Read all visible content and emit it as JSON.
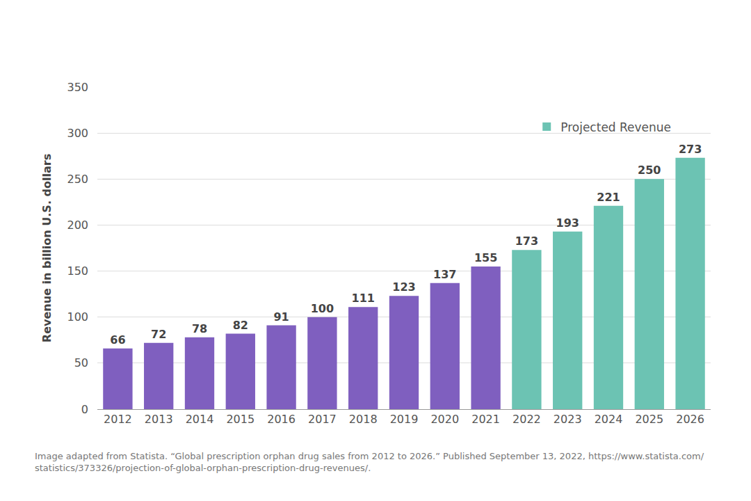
{
  "chart_data": {
    "type": "bar",
    "y_label": "Revenue in billion U.S. dollars",
    "categories": [
      "2012",
      "2013",
      "2014",
      "2015",
      "2016",
      "2017",
      "2018",
      "2019",
      "2020",
      "2021",
      "2022",
      "2023",
      "2024",
      "2025",
      "2026"
    ],
    "series": [
      {
        "color": "#7f5fbf",
        "values": [
          66,
          72,
          78,
          82,
          91,
          100,
          111,
          123,
          137,
          155,
          null,
          null,
          null,
          null,
          null
        ]
      },
      {
        "name": "Projected Revenue",
        "color": "#6cc3b3",
        "values": [
          null,
          null,
          null,
          null,
          null,
          null,
          null,
          null,
          null,
          null,
          173,
          193,
          221,
          250,
          273
        ]
      }
    ],
    "ylim": [
      0,
      350
    ],
    "yticks": [
      0,
      50,
      100,
      150,
      200,
      250,
      300,
      350
    ],
    "grid": true,
    "legend": "upper right",
    "data_labels": true,
    "annotation": [
      "Image adapted from Statista. “Global prescription orphan drug sales from 2012 to 2026.” Published September 13, 2022, https://www.statista.com/",
      "statistics/373326/projection-of-global-orphan-prescription-drug-revenues/."
    ]
  }
}
